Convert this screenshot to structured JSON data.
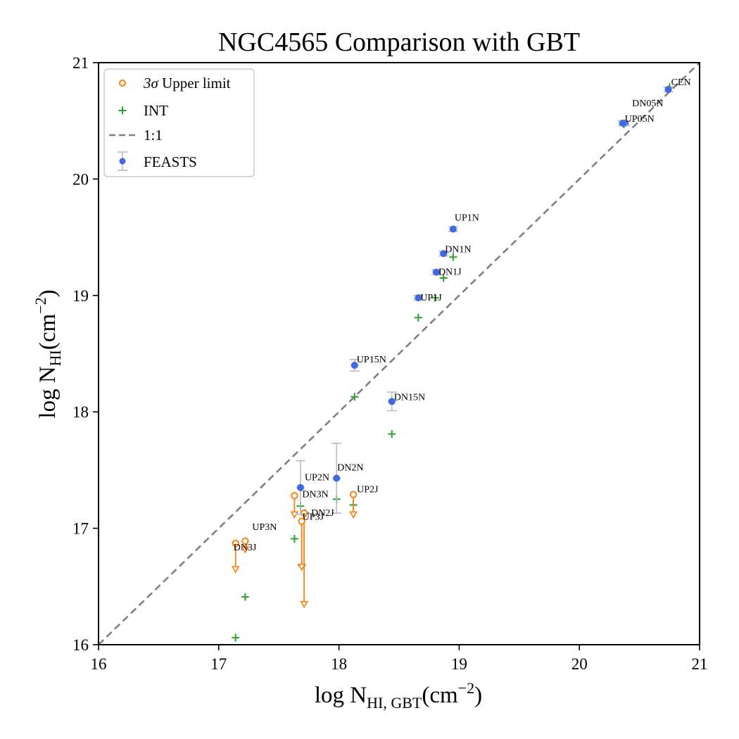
{
  "chart_data": {
    "type": "scatter",
    "title": "NGC4565 Comparison with GBT",
    "xlabel": {
      "main": "log N",
      "sub": "HI, GBT",
      "unit": "(cm",
      "exp": "−2",
      "close": ")"
    },
    "ylabel": {
      "main": "log N",
      "sub": "HI",
      "unit": "(cm",
      "exp": "−2",
      "close": ")"
    },
    "xlim": [
      16,
      21
    ],
    "ylim": [
      16,
      21
    ],
    "xticks": [
      "16",
      "17",
      "18",
      "19",
      "20",
      "21"
    ],
    "yticks": [
      "16",
      "17",
      "18",
      "19",
      "20",
      "21"
    ],
    "legend": {
      "position": "top-left",
      "entries": [
        {
          "key": "upper",
          "label_sigma": "3σ",
          "label_rest": " Upper limit"
        },
        {
          "key": "int",
          "label": "INT"
        },
        {
          "key": "oneone",
          "label": "1:1"
        },
        {
          "key": "feasts",
          "label": "FEASTS"
        }
      ]
    },
    "colors": {
      "feasts": "#4169e1",
      "int": "#2ca02c",
      "upper": "#ff7f0e",
      "oneone": "#808080",
      "errorbar": "#bbbbbb"
    },
    "feasts": [
      {
        "label": "CEN",
        "x": 20.74,
        "y": 20.77,
        "err": 0.02
      },
      {
        "label": "DN05N",
        "x": 20.38,
        "y": 20.48,
        "err": 0.02
      },
      {
        "label": "UP05N",
        "x": 20.36,
        "y": 20.48,
        "err": 0.02
      },
      {
        "label": "UP1N",
        "x": 18.95,
        "y": 19.57,
        "err": 0.02
      },
      {
        "label": "DN1N",
        "x": 18.87,
        "y": 19.36,
        "err": 0.02
      },
      {
        "label": "DN1J",
        "x": 18.81,
        "y": 19.2,
        "err": 0.02
      },
      {
        "label": "UP1J",
        "x": 18.66,
        "y": 18.98,
        "err": 0.02
      },
      {
        "label": "UP15N",
        "x": 18.13,
        "y": 18.4,
        "err": 0.05
      },
      {
        "label": "DN15N",
        "x": 18.44,
        "y": 18.09,
        "err": 0.08
      },
      {
        "label": "DN2N",
        "x": 17.98,
        "y": 17.43,
        "err": 0.3
      },
      {
        "label": "UP2N",
        "x": 17.68,
        "y": 17.35,
        "err": 0.23
      }
    ],
    "upper_limits": [
      {
        "label": "DN3N",
        "x": 17.63,
        "y": 17.28,
        "arrow_to": 17.11
      },
      {
        "label": "UP2J",
        "x": 18.12,
        "y": 17.29,
        "arrow_to": 17.11
      },
      {
        "label": "DN2J",
        "x": 17.71,
        "y": 17.13,
        "arrow_to": 16.34
      },
      {
        "label": "UP3J",
        "x": 17.69,
        "y": 17.06,
        "arrow_to": 16.66
      },
      {
        "label": "UP3N",
        "x": 17.22,
        "y": 16.89,
        "arrow_to": 16.81
      },
      {
        "label": "DN3J",
        "x": 17.14,
        "y": 16.87,
        "arrow_to": 16.64
      }
    ],
    "int": [
      {
        "x": 20.75,
        "y": 20.79
      },
      {
        "x": 20.37,
        "y": 20.47
      },
      {
        "x": 18.95,
        "y": 19.33
      },
      {
        "x": 18.87,
        "y": 19.15
      },
      {
        "x": 18.8,
        "y": 18.98
      },
      {
        "x": 18.66,
        "y": 18.81
      },
      {
        "x": 18.13,
        "y": 18.13
      },
      {
        "x": 18.44,
        "y": 17.81
      },
      {
        "x": 17.98,
        "y": 17.25
      },
      {
        "x": 18.12,
        "y": 17.2
      },
      {
        "x": 17.68,
        "y": 17.19
      },
      {
        "x": 17.72,
        "y": 17.13
      },
      {
        "x": 17.63,
        "y": 16.91
      },
      {
        "x": 17.69,
        "y": 16.68
      },
      {
        "x": 17.22,
        "y": 16.41
      },
      {
        "x": 17.14,
        "y": 16.06
      }
    ]
  }
}
